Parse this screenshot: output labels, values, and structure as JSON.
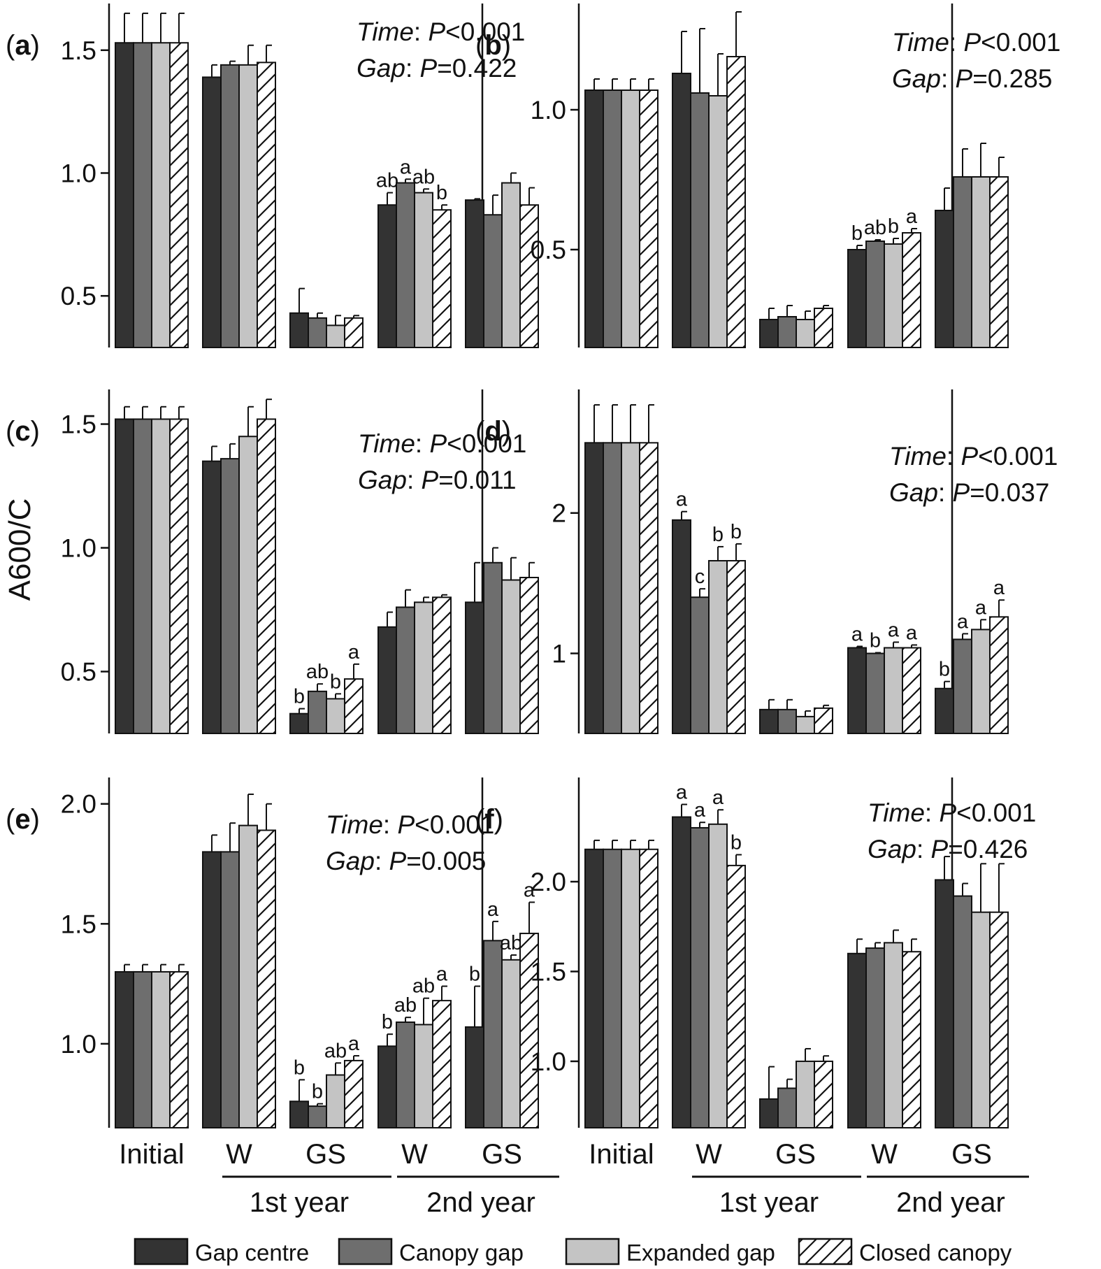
{
  "figure": {
    "ylabel": "A600/C",
    "legend": [
      {
        "name": "Gap centre",
        "key": "gc"
      },
      {
        "name": "Canopy gap",
        "key": "cg"
      },
      {
        "name": "Expanded gap",
        "key": "eg"
      },
      {
        "name": "Closed canopy",
        "key": "cc"
      }
    ],
    "x_groups": [
      "Initial",
      "W",
      "GS",
      "W",
      "GS"
    ],
    "x_years": [
      "1st year",
      "2nd year"
    ],
    "colors": {
      "gc": "#333333",
      "cg": "#6e6e6e",
      "eg": "#c4c4c4",
      "cc": "#ffffff",
      "axis": "#111111"
    }
  },
  "chart_data": [
    {
      "panel": "(a)",
      "type": "bar",
      "categories": [
        "Initial",
        "W",
        "GS",
        "W",
        "GS"
      ],
      "ylim": [
        0.29,
        1.69
      ],
      "yticks": [
        "0.5",
        "1.0",
        "1.5"
      ],
      "stats": [
        {
          "label": "Time",
          "p": "<0.001"
        },
        {
          "label": "Gap",
          "p": "=0.422"
        }
      ],
      "series": [
        {
          "name": "Gap centre",
          "values": [
            1.53,
            1.39,
            0.43,
            0.87,
            0.89
          ],
          "errors": [
            0.12,
            0.05,
            0.1,
            0.05,
            0.005
          ]
        },
        {
          "name": "Canopy gap",
          "values": [
            1.53,
            1.44,
            0.41,
            0.96,
            0.83
          ],
          "errors": [
            0.12,
            0.015,
            0.02,
            0.015,
            0.08
          ]
        },
        {
          "name": "Expanded gap",
          "values": [
            1.53,
            1.44,
            0.38,
            0.92,
            0.96
          ],
          "errors": [
            0.12,
            0.08,
            0.04,
            0.015,
            0.04
          ]
        },
        {
          "name": "Closed canopy",
          "values": [
            1.53,
            1.45,
            0.41,
            0.85,
            0.87
          ],
          "errors": [
            0.12,
            0.07,
            0.01,
            0.02,
            0.07
          ]
        }
      ],
      "letters": [
        [],
        [],
        [],
        [
          "ab",
          "a",
          "ab",
          "b"
        ],
        []
      ]
    },
    {
      "panel": "(b)",
      "type": "bar",
      "categories": [
        "Initial",
        "W",
        "GS",
        "W",
        "GS"
      ],
      "ylim": [
        0.15,
        1.38
      ],
      "yticks": [
        "0.5",
        "1.0"
      ],
      "stats": [
        {
          "label": "Time",
          "p": "<0.001"
        },
        {
          "label": "Gap",
          "p": "=0.285"
        }
      ],
      "series": [
        {
          "name": "Gap centre",
          "values": [
            1.07,
            1.13,
            0.25,
            0.5,
            0.64
          ],
          "errors": [
            0.04,
            0.15,
            0.04,
            0.015,
            0.08
          ]
        },
        {
          "name": "Canopy gap",
          "values": [
            1.07,
            1.06,
            0.26,
            0.53,
            0.76
          ],
          "errors": [
            0.04,
            0.23,
            0.04,
            0.005,
            0.1
          ]
        },
        {
          "name": "Expanded gap",
          "values": [
            1.07,
            1.05,
            0.25,
            0.52,
            0.76
          ],
          "errors": [
            0.04,
            0.15,
            0.03,
            0.02,
            0.12
          ]
        },
        {
          "name": "Closed canopy",
          "values": [
            1.07,
            1.19,
            0.29,
            0.56,
            0.76
          ],
          "errors": [
            0.04,
            0.16,
            0.01,
            0.015,
            0.07
          ]
        }
      ],
      "letters": [
        [],
        [],
        [],
        [
          "b",
          "ab",
          "b",
          "a"
        ],
        []
      ]
    },
    {
      "panel": "(c)",
      "type": "bar",
      "categories": [
        "Initial",
        "W",
        "GS",
        "W",
        "GS"
      ],
      "ylim": [
        0.25,
        1.64
      ],
      "yticks": [
        "0.5",
        "1.0",
        "1.5"
      ],
      "stats": [
        {
          "label": "Time",
          "p": "<0.001"
        },
        {
          "label": "Gap",
          "p": "=0.011"
        }
      ],
      "series": [
        {
          "name": "Gap centre",
          "values": [
            1.52,
            1.35,
            0.33,
            0.68,
            0.78
          ],
          "errors": [
            0.05,
            0.06,
            0.02,
            0.06,
            0.16
          ]
        },
        {
          "name": "Canopy gap",
          "values": [
            1.52,
            1.36,
            0.42,
            0.76,
            0.94
          ],
          "errors": [
            0.05,
            0.06,
            0.03,
            0.07,
            0.06
          ]
        },
        {
          "name": "Expanded gap",
          "values": [
            1.52,
            1.45,
            0.39,
            0.78,
            0.87
          ],
          "errors": [
            0.05,
            0.12,
            0.02,
            0.02,
            0.09
          ]
        },
        {
          "name": "Closed canopy",
          "values": [
            1.52,
            1.52,
            0.47,
            0.8,
            0.88
          ],
          "errors": [
            0.05,
            0.08,
            0.06,
            0.01,
            0.06
          ]
        }
      ],
      "letters": [
        [],
        [],
        [
          "b",
          "ab",
          "b",
          "a"
        ],
        [],
        []
      ]
    },
    {
      "panel": "(d)",
      "type": "bar",
      "categories": [
        "Initial",
        "W",
        "GS",
        "W",
        "GS"
      ],
      "ylim": [
        0.43,
        2.88
      ],
      "yticks": [
        "1",
        "2"
      ],
      "stats": [
        {
          "label": "Time",
          "p": "<0.001"
        },
        {
          "label": "Gap",
          "p": "=0.037"
        }
      ],
      "series": [
        {
          "name": "Gap centre",
          "values": [
            2.5,
            1.95,
            0.6,
            1.04,
            0.75
          ],
          "errors": [
            0.27,
            0.06,
            0.07,
            0.01,
            0.05
          ]
        },
        {
          "name": "Canopy gap",
          "values": [
            2.5,
            1.4,
            0.6,
            1.0,
            1.1
          ],
          "errors": [
            0.27,
            0.06,
            0.07,
            0.005,
            0.04
          ]
        },
        {
          "name": "Expanded gap",
          "values": [
            2.5,
            1.66,
            0.55,
            1.04,
            1.17
          ],
          "errors": [
            0.27,
            0.1,
            0.04,
            0.04,
            0.07
          ]
        },
        {
          "name": "Closed canopy",
          "values": [
            2.5,
            1.66,
            0.61,
            1.04,
            1.26
          ],
          "errors": [
            0.27,
            0.12,
            0.02,
            0.02,
            0.12
          ]
        }
      ],
      "letters": [
        [],
        [
          "a",
          "c",
          "b",
          "b"
        ],
        [],
        [
          "a",
          "b",
          "a",
          "a"
        ],
        [
          "b",
          "a",
          "a",
          "a"
        ]
      ]
    },
    {
      "panel": "(e)",
      "type": "bar",
      "categories": [
        "Initial",
        "W",
        "GS",
        "W",
        "GS"
      ],
      "ylim": [
        0.65,
        2.11
      ],
      "yticks": [
        "1.0",
        "1.5",
        "2.0"
      ],
      "stats": [
        {
          "label": "Time",
          "p": "<0.001"
        },
        {
          "label": "Gap",
          "p": "=0.005"
        }
      ],
      "series": [
        {
          "name": "Gap centre",
          "values": [
            1.3,
            1.8,
            0.76,
            0.99,
            1.07
          ],
          "errors": [
            0.03,
            0.07,
            0.09,
            0.05,
            0.17
          ]
        },
        {
          "name": "Canopy gap",
          "values": [
            1.3,
            1.8,
            0.74,
            1.09,
            1.43
          ],
          "errors": [
            0.03,
            0.12,
            0.01,
            0.02,
            0.08
          ]
        },
        {
          "name": "Expanded gap",
          "values": [
            1.3,
            1.91,
            0.87,
            1.08,
            1.35
          ],
          "errors": [
            0.03,
            0.13,
            0.05,
            0.11,
            0.02
          ]
        },
        {
          "name": "Closed canopy",
          "values": [
            1.3,
            1.89,
            0.93,
            1.18,
            1.46
          ],
          "errors": [
            0.03,
            0.11,
            0.02,
            0.06,
            0.13
          ]
        }
      ],
      "letters": [
        [],
        [],
        [
          "b",
          "b",
          "ab",
          "a"
        ],
        [
          "b",
          "ab",
          "ab",
          "a"
        ],
        [
          "b",
          "a",
          "ab",
          "a"
        ]
      ]
    },
    {
      "panel": "(f)",
      "type": "bar",
      "categories": [
        "Initial",
        "W",
        "GS",
        "W",
        "GS"
      ],
      "ylim": [
        0.63,
        2.58
      ],
      "yticks": [
        "1.0",
        "1.5",
        "2.0"
      ],
      "stats": [
        {
          "label": "Time",
          "p": "<0.001"
        },
        {
          "label": "Gap",
          "p": "=0.426"
        }
      ],
      "series": [
        {
          "name": "Gap centre",
          "values": [
            2.18,
            2.36,
            0.79,
            1.6,
            2.01
          ],
          "errors": [
            0.05,
            0.07,
            0.18,
            0.08,
            0.13
          ]
        },
        {
          "name": "Canopy gap",
          "values": [
            2.18,
            2.3,
            0.85,
            1.63,
            1.92
          ],
          "errors": [
            0.05,
            0.03,
            0.05,
            0.03,
            0.07
          ]
        },
        {
          "name": "Expanded gap",
          "values": [
            2.18,
            2.32,
            1.0,
            1.66,
            1.83
          ],
          "errors": [
            0.05,
            0.08,
            0.07,
            0.07,
            0.27
          ]
        },
        {
          "name": "Closed canopy",
          "values": [
            2.18,
            2.09,
            1.0,
            1.61,
            1.83
          ],
          "errors": [
            0.05,
            0.06,
            0.03,
            0.07,
            0.27
          ]
        }
      ],
      "letters": [
        [],
        [
          "a",
          "a",
          "a",
          "b"
        ],
        [],
        [],
        []
      ]
    }
  ]
}
